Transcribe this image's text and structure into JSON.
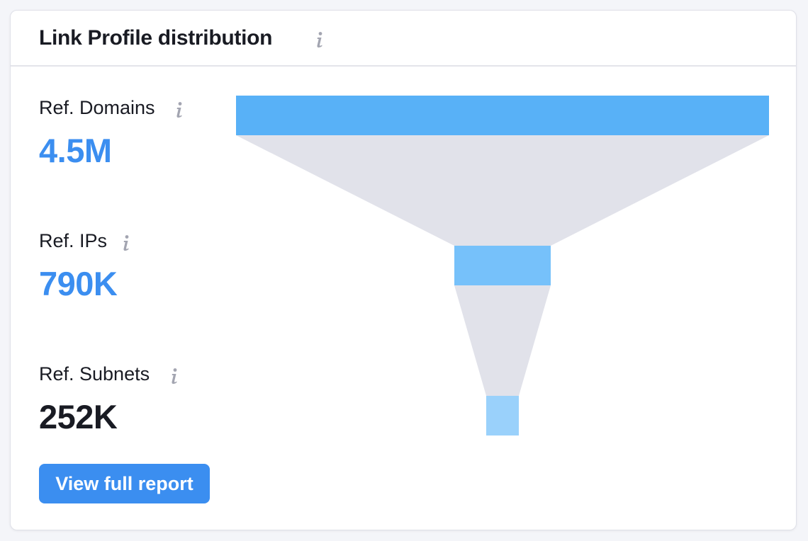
{
  "card": {
    "title": "Link Profile distribution"
  },
  "metrics": [
    {
      "label": "Ref. Domains",
      "value": "4.5M",
      "value_color": "#3b8ef0",
      "bar_color": "#58b1f7"
    },
    {
      "label": "Ref. IPs",
      "value": "790K",
      "value_color": "#3b8ef0",
      "bar_color": "#76c1fa"
    },
    {
      "label": "Ref. Subnets",
      "value": "252K",
      "value_color": "#191b23",
      "bar_color": "#9ad1fb"
    }
  ],
  "funnel_fill_color": "#e1e2ea",
  "info_icon_color": "#a3a5b1",
  "cta": {
    "label": "View full report",
    "color": "#3b8ef0"
  }
}
